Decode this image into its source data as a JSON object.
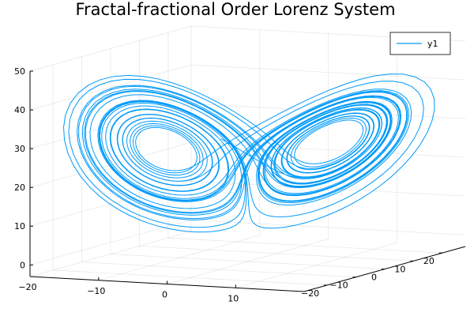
{
  "chart_data": {
    "type": "line",
    "projection": "3d",
    "title": "Fractal-fractional Order Lorenz System",
    "xlabel": "",
    "ylabel": "",
    "zlabel": "",
    "grid": true,
    "legend_position": "top-right",
    "series": [
      {
        "name": "y1",
        "color": "#009AFA",
        "form": "lorenz-attractor",
        "sigma": 10,
        "rho": 28,
        "beta": 2.6667,
        "start": [
          -8,
          8,
          27
        ]
      }
    ],
    "x_axis": {
      "ticks": [
        -20,
        -10,
        0,
        10
      ],
      "lim": [
        -20,
        20
      ]
    },
    "y_axis": {
      "ticks": [
        -20,
        -10,
        0,
        10,
        20
      ],
      "lim": [
        -28,
        28
      ]
    },
    "z_axis": {
      "ticks": [
        0,
        10,
        20,
        30,
        40,
        50
      ],
      "lim": [
        -3,
        50
      ]
    }
  }
}
